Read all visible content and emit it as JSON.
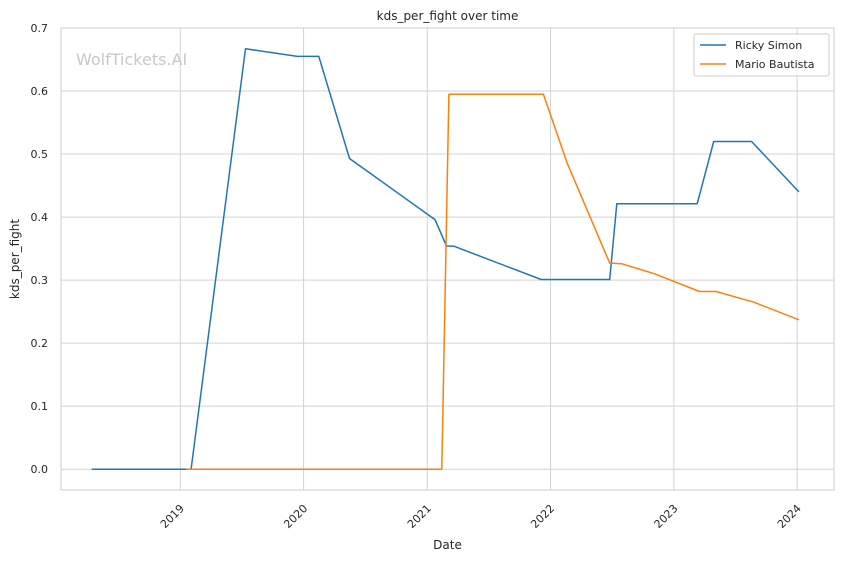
{
  "chart_data": {
    "type": "line",
    "title": "kds_per_fight over time",
    "xlabel": "Date",
    "ylabel": "kds_per_fight",
    "watermark": "WolfTickets.AI",
    "xlim": [
      "2018-01-13",
      "2024-04-19"
    ],
    "ylim": [
      -0.033,
      0.7
    ],
    "x_ticks": [
      "2019",
      "2020",
      "2021",
      "2022",
      "2023",
      "2024"
    ],
    "y_ticks": [
      "0.0",
      "0.1",
      "0.2",
      "0.3",
      "0.4",
      "0.5",
      "0.6",
      "0.7"
    ],
    "grid": true,
    "legend_position": "top-right",
    "series": [
      {
        "name": "Ricky Simon",
        "color": "#1f77b4",
        "points": [
          [
            "2018-04-14",
            0.0
          ],
          [
            "2019-02-02",
            0.0
          ],
          [
            "2019-07-13",
            0.667
          ],
          [
            "2019-12-14",
            0.655
          ],
          [
            "2020-02-15",
            0.655
          ],
          [
            "2020-05-16",
            0.493
          ],
          [
            "2021-01-24",
            0.396
          ],
          [
            "2021-02-27",
            0.354
          ],
          [
            "2021-03-20",
            0.354
          ],
          [
            "2021-12-04",
            0.301
          ],
          [
            "2022-06-25",
            0.301
          ],
          [
            "2022-07-16",
            0.421
          ],
          [
            "2023-03-11",
            0.421
          ],
          [
            "2023-04-29",
            0.52
          ],
          [
            "2023-08-19",
            0.52
          ],
          [
            "2024-01-06",
            0.44
          ]
        ]
      },
      {
        "name": "Mario Bautista",
        "color": "#ff7f0e",
        "points": [
          [
            "2019-01-19",
            0.0
          ],
          [
            "2021-02-13",
            0.0
          ],
          [
            "2021-03-06",
            0.595
          ],
          [
            "2021-12-11",
            0.595
          ],
          [
            "2022-02-19",
            0.486
          ],
          [
            "2022-06-25",
            0.327
          ],
          [
            "2022-07-30",
            0.326
          ],
          [
            "2022-11-05",
            0.31
          ],
          [
            "2023-03-18",
            0.282
          ],
          [
            "2023-05-06",
            0.282
          ],
          [
            "2023-08-26",
            0.265
          ],
          [
            "2024-01-06",
            0.237
          ]
        ]
      }
    ]
  }
}
